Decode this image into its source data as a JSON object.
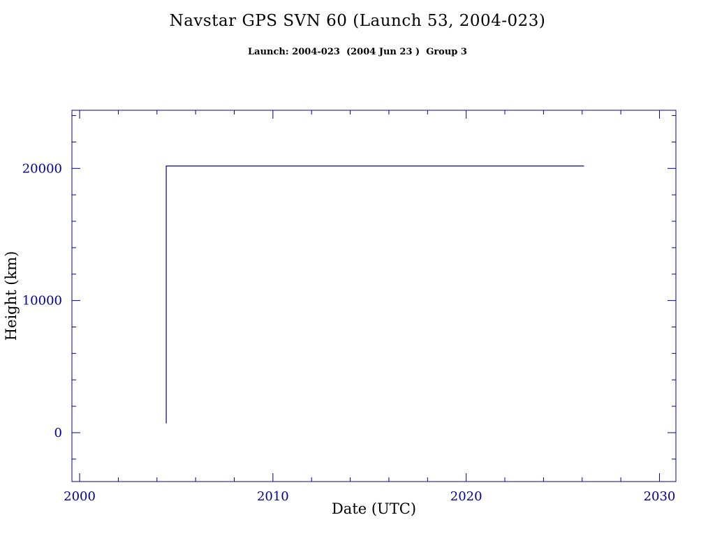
{
  "page": {
    "title": "Navstar GPS SVN 60 (Launch 53, 2004-023)",
    "subtitle": "Launch: 2004-023  (2004 Jun 23 )  Group 3"
  },
  "colors": {
    "ink": "#000099",
    "background": "#FFFFFF"
  },
  "chart_data": {
    "type": "line",
    "title": "Navstar GPS SVN 60 (Launch 53, 2004-023)",
    "subtitle": "Launch: 2004-023  (2004 Jun 23 )  Group 3",
    "xlabel": "Date (UTC)",
    "ylabel": "Height (km)",
    "xlim": [
      1999.6,
      2030.85
    ],
    "ylim": [
      -3700,
      24400
    ],
    "x_ticks": [
      2000,
      2010,
      2020,
      2030
    ],
    "x_minor_step": 2,
    "y_ticks": [
      0,
      10000,
      20000
    ],
    "y_minor_step": 2000,
    "grid": false,
    "legend": false,
    "line_color": "#000099",
    "series": [
      {
        "name": "height-km",
        "x": [
          2004.48,
          2004.48,
          2026.1
        ],
        "y": [
          700,
          20180,
          20180
        ]
      }
    ]
  }
}
